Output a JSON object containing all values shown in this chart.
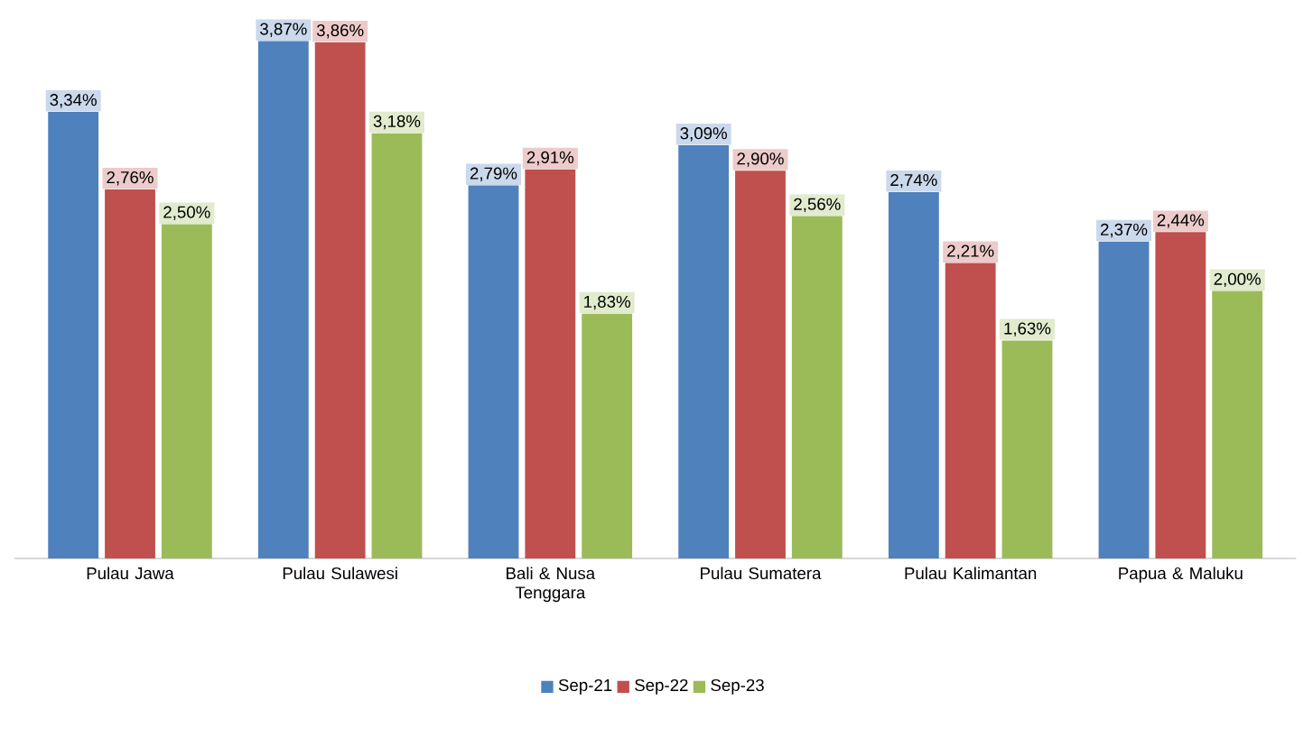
{
  "chart_data": {
    "type": "bar",
    "categories": [
      "Pulau Jawa",
      "Pulau Sulawesi",
      "Bali & Nusa Tenggara",
      "Pulau Sumatera",
      "Pulau Kalimantan",
      "Papua & Maluku"
    ],
    "series": [
      {
        "name": "Sep-21",
        "color": "#4f81bd",
        "values": [
          3.34,
          3.87,
          2.79,
          3.09,
          2.74,
          2.37
        ],
        "value_labels": [
          "3,34%",
          "3,87%",
          "2,79%",
          "3,09%",
          "2,74%",
          "2,37%"
        ]
      },
      {
        "name": "Sep-22",
        "color": "#c0504d",
        "values": [
          2.76,
          3.86,
          2.91,
          2.9,
          2.21,
          2.44
        ],
        "value_labels": [
          "2,76%",
          "3,86%",
          "2,91%",
          "2,90%",
          "2,21%",
          "2,44%"
        ]
      },
      {
        "name": "Sep-23",
        "color": "#9bbb59",
        "values": [
          2.5,
          3.18,
          1.83,
          2.56,
          1.63,
          2.0
        ],
        "value_labels": [
          "2,50%",
          "3,18%",
          "1,83%",
          "2,56%",
          "1,63%",
          "2,00%"
        ]
      }
    ],
    "legend": "bottom",
    "grid": false
  }
}
